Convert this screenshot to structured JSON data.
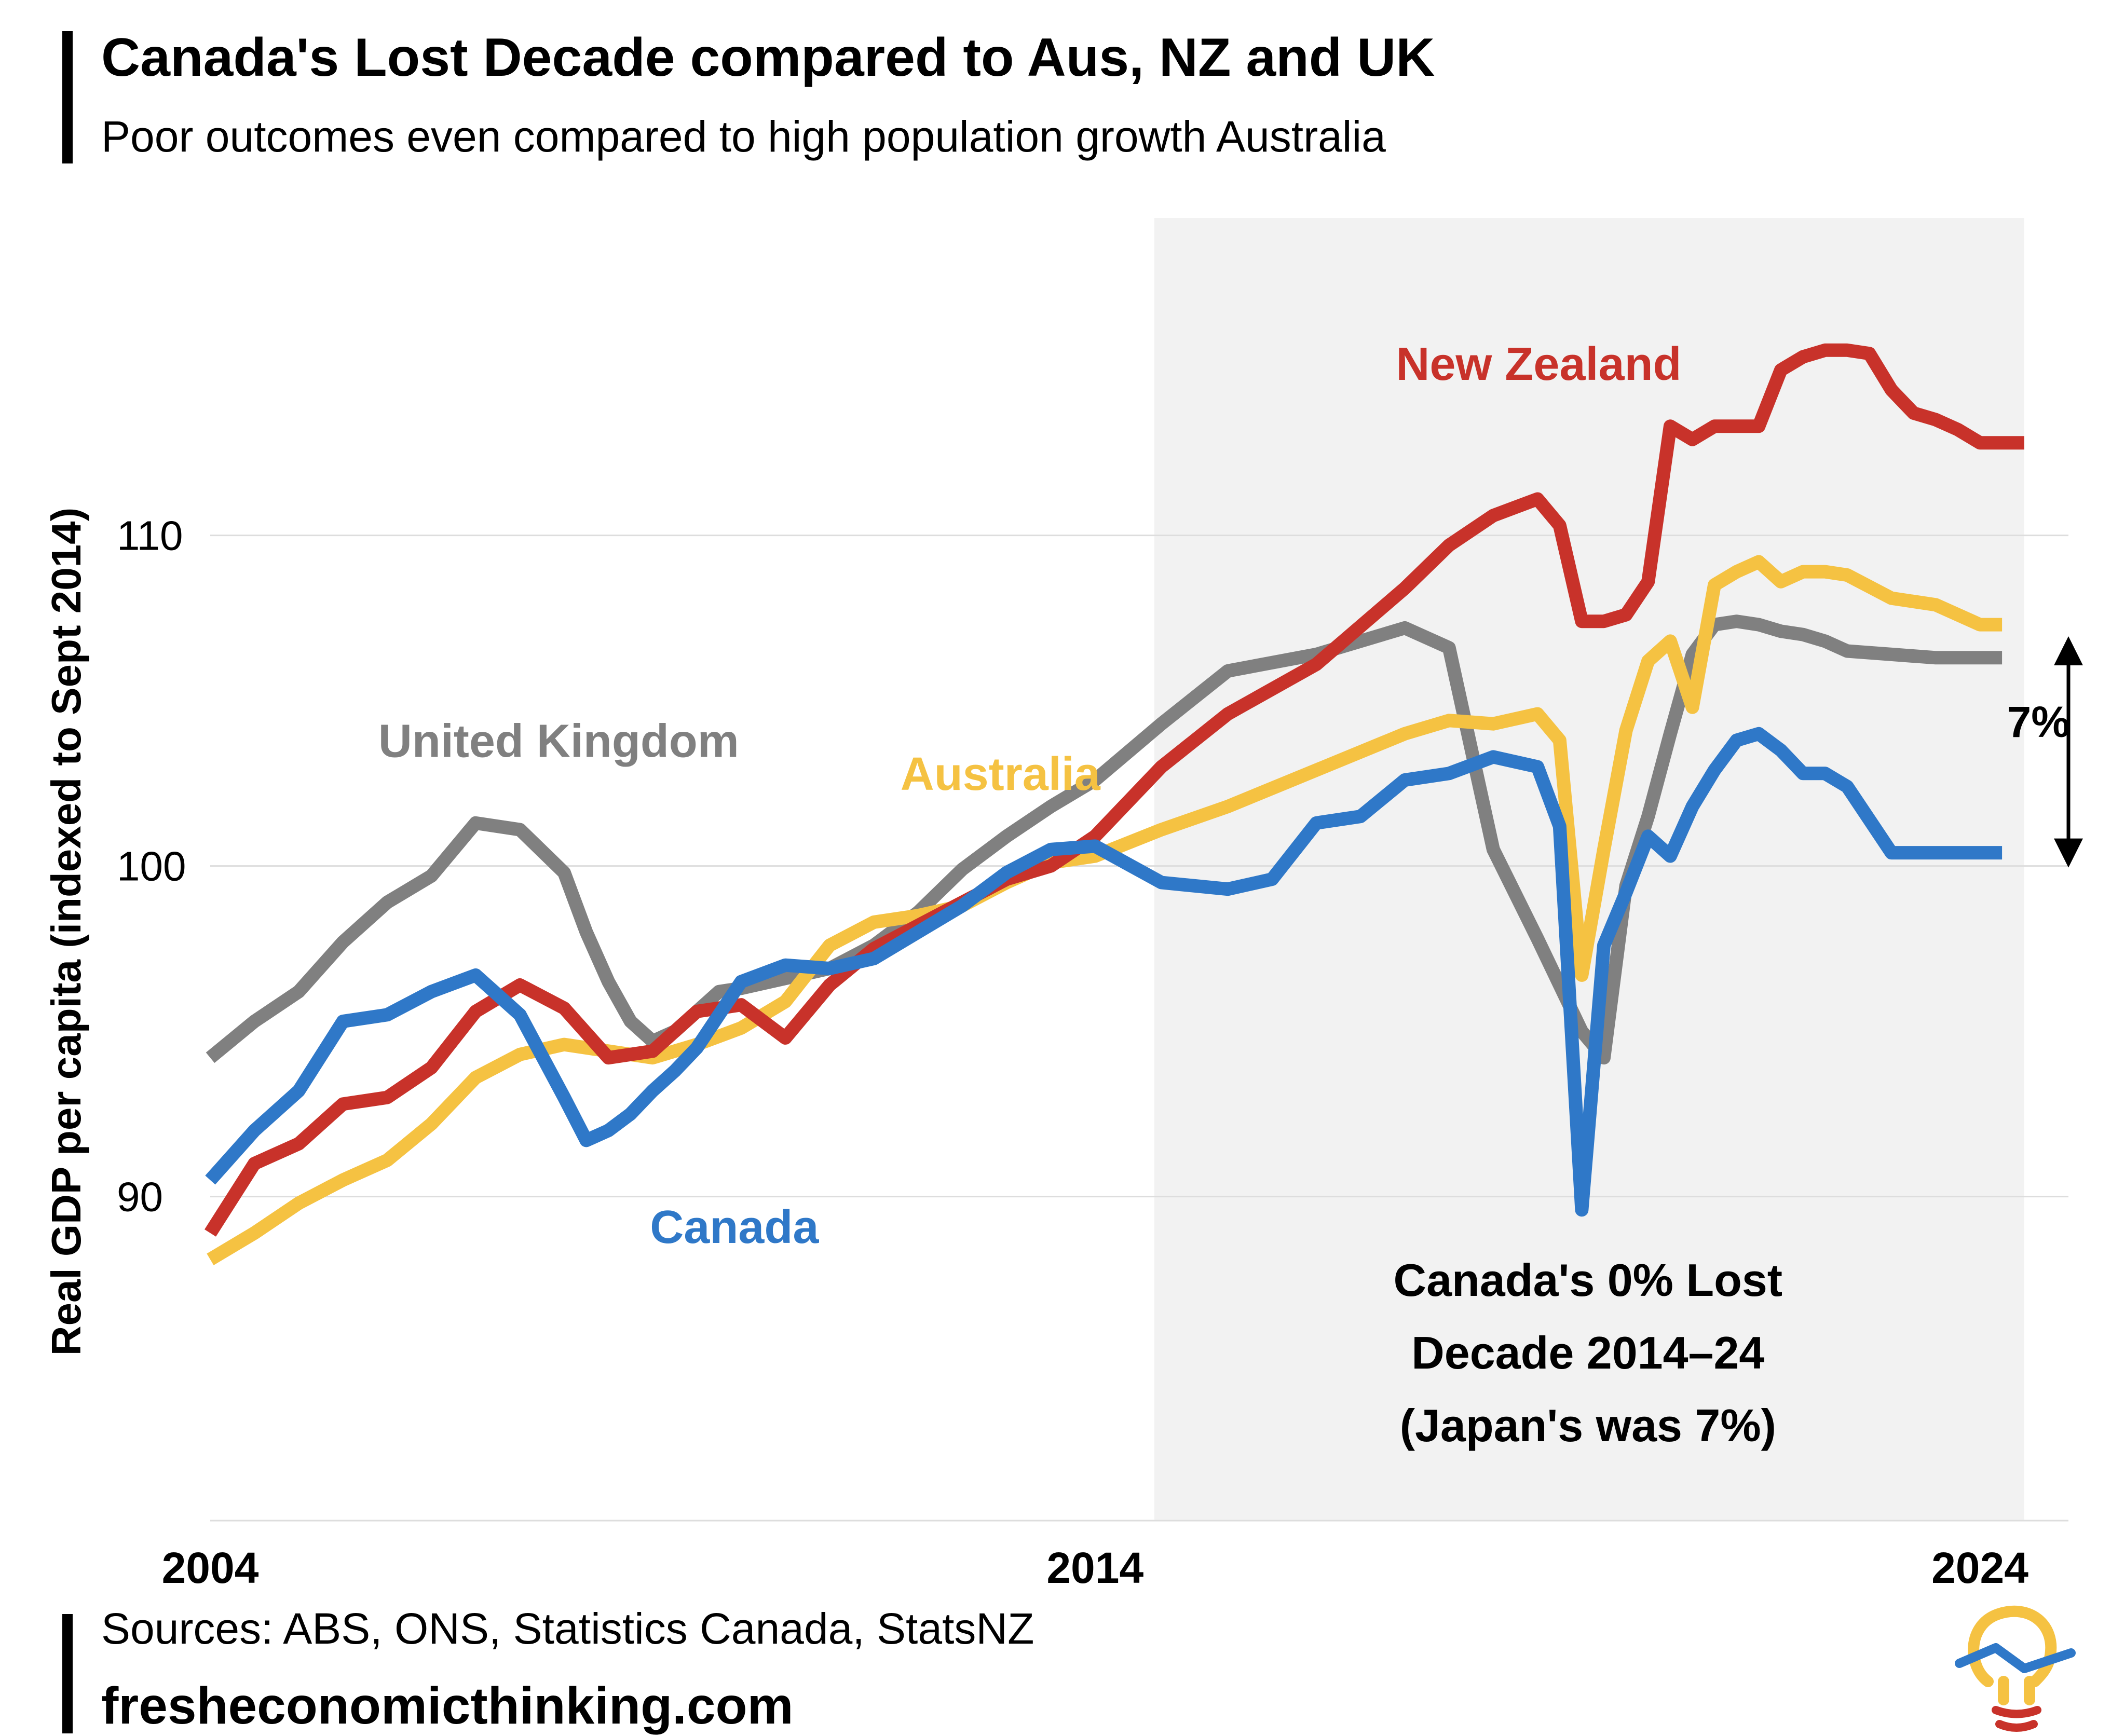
{
  "header": {
    "title": "Canada's Lost Decade compared to Aus, NZ and UK",
    "subtitle": "Poor outcomes even compared to high population growth Australia"
  },
  "footer": {
    "sources": "Sources: ABS, ONS, Statistics Canada, StatsNZ",
    "website": "fresheconomicthinking.com"
  },
  "colors": {
    "new_zealand": "#c8322a",
    "australia": "#f5c242",
    "united_kingdom": "#808080",
    "canada": "#2f78c8",
    "shade": "#f2f2f2",
    "grid": "#dddddd"
  },
  "chart_data": {
    "type": "line",
    "title": "Canada's Lost Decade compared to Aus, NZ and UK",
    "subtitle": "Poor outcomes even compared to high population growth Australia",
    "xlabel": "",
    "ylabel": "Real GDP per capita (indexed to Sept 2014)",
    "xlim": [
      2004.0,
      2025.0
    ],
    "ylim": [
      80.2,
      119.6
    ],
    "xticks": [
      2004,
      2014,
      2024
    ],
    "xtick_labels": [
      "2004",
      "2014",
      "2024"
    ],
    "yticks": [
      90,
      100,
      110
    ],
    "ytick_labels": [
      "90",
      "100",
      "110"
    ],
    "grid": true,
    "shaded_region": {
      "x": [
        2014.67,
        2024.5
      ]
    },
    "series": [
      {
        "name": "United Kingdom",
        "color_key": "united_kingdom",
        "x": [
          2004.0,
          2004.5,
          2005.0,
          2005.5,
          2006.0,
          2006.5,
          2007.0,
          2007.5,
          2008.0,
          2008.25,
          2008.5,
          2008.75,
          2009.0,
          2009.25,
          2009.5,
          2009.75,
          2010.0,
          2010.5,
          2011.0,
          2011.5,
          2012.0,
          2012.5,
          2013.0,
          2013.5,
          2014.0,
          2014.75,
          2015.5,
          2016.5,
          2017.5,
          2018.0,
          2018.5,
          2019.0,
          2019.5,
          2019.75,
          2020.0,
          2020.25,
          2020.5,
          2020.75,
          2021.0,
          2021.25,
          2021.5,
          2021.75,
          2022.0,
          2022.25,
          2022.5,
          2023.0,
          2023.5,
          2024.0,
          2024.25
        ],
        "values": [
          94.2,
          95.3,
          96.2,
          97.7,
          98.9,
          99.7,
          101.3,
          101.1,
          99.8,
          98.0,
          96.5,
          95.3,
          94.7,
          95.0,
          95.6,
          96.2,
          96.3,
          96.6,
          96.9,
          97.6,
          98.6,
          99.9,
          100.9,
          101.8,
          102.6,
          104.3,
          105.9,
          106.4,
          107.2,
          106.6,
          100.5,
          97.8,
          95.0,
          94.2,
          99.4,
          101.5,
          104.0,
          106.4,
          107.3,
          107.4,
          107.3,
          107.1,
          107.0,
          106.8,
          106.5,
          106.4,
          106.3,
          106.3,
          106.3
        ]
      },
      {
        "name": "Australia",
        "color_key": "australia",
        "x": [
          2004.0,
          2004.5,
          2005.0,
          2005.5,
          2006.0,
          2006.5,
          2007.0,
          2007.5,
          2008.0,
          2008.5,
          2009.0,
          2009.5,
          2010.0,
          2010.5,
          2011.0,
          2011.5,
          2012.0,
          2012.5,
          2013.0,
          2013.5,
          2014.0,
          2014.75,
          2015.5,
          2016.5,
          2017.5,
          2018.0,
          2018.5,
          2019.0,
          2019.25,
          2019.5,
          2019.75,
          2020.0,
          2020.25,
          2020.5,
          2020.75,
          2021.0,
          2021.25,
          2021.5,
          2021.75,
          2022.0,
          2022.25,
          2022.5,
          2023.0,
          2023.5,
          2024.0,
          2024.25
        ],
        "values": [
          88.1,
          88.9,
          89.8,
          90.5,
          91.1,
          92.2,
          93.6,
          94.3,
          94.6,
          94.4,
          94.2,
          94.6,
          95.1,
          95.9,
          97.6,
          98.3,
          98.5,
          98.8,
          99.5,
          100.1,
          100.3,
          101.1,
          101.8,
          102.9,
          104.0,
          104.4,
          104.3,
          104.6,
          103.8,
          96.7,
          100.5,
          104.1,
          106.2,
          106.8,
          104.8,
          108.5,
          108.9,
          109.2,
          108.6,
          108.9,
          108.9,
          108.8,
          108.1,
          107.9,
          107.3,
          107.3
        ]
      },
      {
        "name": "New Zealand",
        "color_key": "new_zealand",
        "x": [
          2004.0,
          2004.5,
          2005.0,
          2005.5,
          2006.0,
          2006.5,
          2007.0,
          2007.5,
          2008.0,
          2008.5,
          2009.0,
          2009.5,
          2010.0,
          2010.5,
          2011.0,
          2011.5,
          2012.0,
          2012.5,
          2013.0,
          2013.5,
          2014.0,
          2014.75,
          2015.5,
          2016.5,
          2017.5,
          2018.0,
          2018.5,
          2019.0,
          2019.25,
          2019.5,
          2019.75,
          2020.0,
          2020.25,
          2020.5,
          2020.75,
          2021.0,
          2021.25,
          2021.5,
          2021.75,
          2022.0,
          2022.25,
          2022.5,
          2022.75,
          2023.0,
          2023.25,
          2023.5,
          2023.75,
          2024.0,
          2024.25,
          2024.5
        ],
        "values": [
          88.9,
          91.0,
          91.6,
          92.8,
          93.0,
          93.9,
          95.6,
          96.4,
          95.7,
          94.2,
          94.4,
          95.6,
          95.8,
          94.8,
          96.4,
          97.5,
          98.2,
          98.9,
          99.6,
          100.0,
          100.9,
          103.0,
          104.6,
          106.1,
          108.4,
          109.7,
          110.6,
          111.1,
          110.3,
          107.4,
          107.4,
          107.6,
          108.6,
          113.3,
          112.9,
          113.3,
          113.3,
          113.3,
          115.0,
          115.4,
          115.6,
          115.6,
          115.5,
          114.4,
          113.7,
          113.5,
          113.2,
          112.8,
          112.8,
          112.8
        ]
      },
      {
        "name": "Canada",
        "color_key": "canada",
        "x": [
          2004.0,
          2004.5,
          2005.0,
          2005.5,
          2006.0,
          2006.5,
          2007.0,
          2007.5,
          2008.0,
          2008.25,
          2008.5,
          2008.75,
          2009.0,
          2009.25,
          2009.5,
          2009.75,
          2010.0,
          2010.5,
          2011.0,
          2011.5,
          2012.0,
          2012.5,
          2013.0,
          2013.5,
          2014.0,
          2014.75,
          2015.5,
          2016.0,
          2016.5,
          2017.0,
          2017.5,
          2018.0,
          2018.5,
          2019.0,
          2019.25,
          2019.5,
          2019.75,
          2020.0,
          2020.25,
          2020.5,
          2020.75,
          2021.0,
          2021.25,
          2021.5,
          2021.75,
          2022.0,
          2022.25,
          2022.5,
          2022.75,
          2023.0,
          2023.25,
          2023.5,
          2023.75,
          2024.0,
          2024.25
        ],
        "values": [
          90.5,
          92.0,
          93.2,
          95.3,
          95.5,
          96.2,
          96.7,
          95.5,
          93.0,
          91.7,
          92.0,
          92.5,
          93.2,
          93.8,
          94.5,
          95.5,
          96.5,
          97.0,
          96.9,
          97.2,
          98.0,
          98.8,
          99.8,
          100.5,
          100.6,
          99.5,
          99.3,
          99.6,
          101.3,
          101.5,
          102.6,
          102.8,
          103.3,
          103.0,
          101.2,
          89.6,
          97.6,
          99.2,
          100.9,
          100.3,
          101.8,
          102.9,
          103.8,
          104.0,
          103.5,
          102.8,
          102.8,
          102.4,
          101.4,
          100.4,
          100.4,
          100.4,
          100.4,
          100.4,
          100.4
        ]
      }
    ],
    "series_labels": [
      {
        "text": "New Zealand",
        "color_key": "new_zealand"
      },
      {
        "text": "United Kingdom",
        "color_key": "united_kingdom"
      },
      {
        "text": "Australia",
        "color_key": "australia"
      },
      {
        "text": "Canada",
        "color_key": "canada"
      }
    ],
    "annotations": {
      "lost_decade_lines": [
        "Canada's 0% Lost",
        "Decade 2014–24",
        "(Japan's was 7%)"
      ],
      "gap_label": "7%",
      "gap_range": [
        100.0,
        106.9
      ],
      "gap_x": 2025.0
    }
  }
}
